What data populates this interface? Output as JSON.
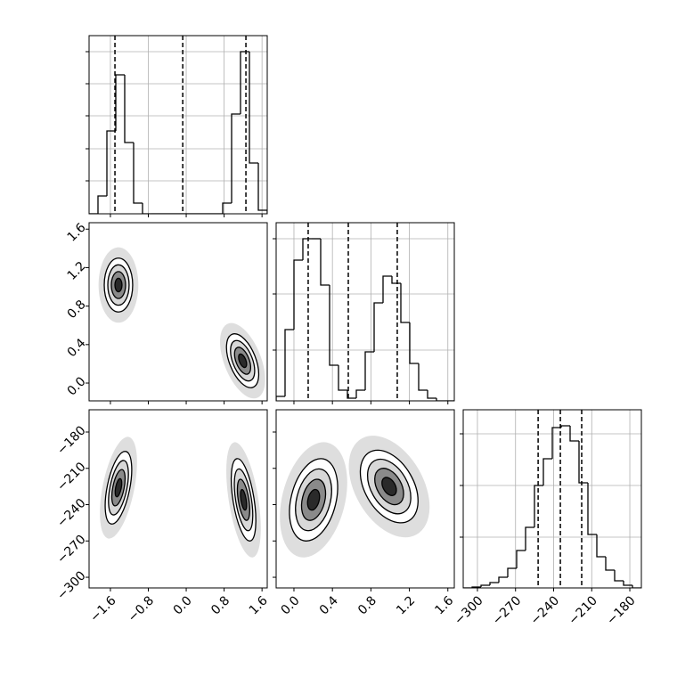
{
  "chart_data": [
    {
      "type": "histogram",
      "color": "#000000",
      "grid": true,
      "show_xtick_labels": false,
      "show_ytick_labels": false,
      "bins": [
        -2.05,
        -1.862,
        -1.674,
        -1.486,
        -1.298,
        -1.11,
        -0.922,
        -0.734,
        -0.546,
        -0.358,
        -0.17,
        0.018,
        0.206,
        0.394,
        0.582,
        0.77,
        0.958,
        1.146,
        1.334,
        1.522,
        1.71
      ],
      "values": [
        0,
        20,
        93,
        156,
        80,
        12,
        0,
        0,
        0,
        0,
        0,
        0,
        0,
        0,
        0,
        12,
        112,
        182,
        57,
        4
      ],
      "quantiles": [
        -1.504,
        -0.073,
        1.26
      ],
      "xlim": [
        -2.05,
        1.71
      ],
      "ylim": [
        0,
        200
      ],
      "xticks": [
        -1.6,
        -0.8,
        0,
        0.8,
        1.6
      ],
      "yticks": [
        37,
        73,
        110,
        146,
        182
      ]
    },
    {
      "type": "contour",
      "color": "#000000",
      "grid": false,
      "show_xtick_labels": false,
      "show_ytick_labels": true,
      "blobs": [
        {
          "x": -1.43,
          "y": 1.019,
          "sx": 0.15,
          "sy": 0.14,
          "rho": 0
        },
        {
          "x": 1.19,
          "y": 0.232,
          "sx": 0.17,
          "sy": 0.14,
          "rho": -0.5
        }
      ],
      "xlim": [
        -2.05,
        1.71
      ],
      "ylim": [
        -0.185,
        1.667
      ],
      "xticks": [
        -1.6,
        -0.8,
        0,
        0.8,
        1.6
      ],
      "yticks": [
        {
          "value": 0,
          "label": "0.0"
        },
        0.4,
        0.8,
        1.2,
        1.6
      ]
    },
    {
      "type": "histogram",
      "color": "#000000",
      "grid": true,
      "show_xtick_labels": false,
      "show_ytick_labels": false,
      "bins": [
        -0.185,
        -0.0924,
        0.0002,
        0.0928,
        0.1854,
        0.278,
        0.3706,
        0.4632,
        0.5558,
        0.6484,
        0.741,
        0.8336,
        0.9262,
        1.0188,
        1.1114,
        1.204,
        1.2966,
        1.3892,
        1.4818,
        1.5744,
        1.667
      ],
      "values": [
        5,
        80,
        158,
        182,
        182,
        130,
        40,
        12,
        3,
        12,
        55,
        110,
        140,
        132,
        88,
        42,
        12,
        3,
        0,
        0
      ],
      "quantiles": [
        0.148,
        0.565,
        1.074
      ],
      "xlim": [
        -0.185,
        1.667
      ],
      "ylim": [
        0,
        200
      ],
      "xticks": [
        0,
        0.4,
        0.8,
        1.2,
        1.6
      ],
      "yticks": [
        57,
        120,
        182
      ]
    },
    {
      "type": "contour",
      "color": "#000000",
      "grid": false,
      "show_xtick_labels": true,
      "show_ytick_labels": true,
      "blobs": [
        {
          "x": -1.43,
          "y": -226,
          "sx": 0.14,
          "sy": 15,
          "rho": 0.5
        },
        {
          "x": 1.21,
          "y": -236,
          "sx": 0.13,
          "sy": 17,
          "rho": -0.5
        }
      ],
      "xlim": [
        -2.05,
        1.71
      ],
      "ylim": [
        -308.8,
        -161.6
      ],
      "xticks": [
        {
          "value": -1.6,
          "label": "−1.6"
        },
        {
          "value": -0.8,
          "label": "−0.8"
        },
        {
          "value": 0,
          "label": "0.0"
        },
        0.8,
        1.6
      ],
      "yticks": [
        {
          "value": -300,
          "label": "−300"
        },
        {
          "value": -270,
          "label": "−270"
        },
        {
          "value": -240,
          "label": "−240"
        },
        {
          "value": -210,
          "label": "−210"
        },
        {
          "value": -180,
          "label": "−180"
        }
      ]
    },
    {
      "type": "contour",
      "color": "#000000",
      "grid": false,
      "show_xtick_labels": true,
      "show_ytick_labels": false,
      "blobs": [
        {
          "x": 0.204,
          "y": -236,
          "sx": 0.125,
          "sy": 17,
          "rho": 0.3
        },
        {
          "x": 0.99,
          "y": -225,
          "sx": 0.15,
          "sy": 15,
          "rho": -0.4
        }
      ],
      "xlim": [
        -0.185,
        1.667
      ],
      "ylim": [
        -308.8,
        -161.6
      ],
      "xticks": [
        {
          "value": 0,
          "label": "0.0"
        },
        0.4,
        0.8,
        1.2,
        1.6
      ],
      "yticks": [
        -300,
        -270,
        -240,
        -210,
        -180
      ]
    },
    {
      "type": "histogram",
      "color": "#000000",
      "grid": true,
      "show_xtick_labels": true,
      "show_ytick_labels": false,
      "bins": [
        -311.2,
        -304.185,
        -297.17,
        -290.155,
        -283.14,
        -276.125,
        -269.11,
        -262.095,
        -255.08,
        -248.065,
        -241.05,
        -234.035,
        -227.02,
        -220.005,
        -212.99,
        -205.975,
        -198.96,
        -191.945,
        -184.93,
        -177.915,
        -170.9
      ],
      "values": [
        0,
        1,
        3,
        6,
        12,
        22,
        42,
        68,
        115,
        145,
        180,
        182,
        165,
        118,
        60,
        35,
        20,
        8,
        3,
        0
      ],
      "quantiles": [
        -252.2,
        -234.7,
        -217.9
      ],
      "xlim": [
        -311.2,
        -170.9
      ],
      "ylim": [
        0,
        200
      ],
      "xticks": [
        {
          "value": -300,
          "label": "−300"
        },
        {
          "value": -270,
          "label": "−270"
        },
        {
          "value": -240,
          "label": "−240"
        },
        {
          "value": -210,
          "label": "−210"
        },
        {
          "value": -180,
          "label": "−180"
        }
      ],
      "yticks": [
        57,
        115,
        173
      ]
    }
  ]
}
